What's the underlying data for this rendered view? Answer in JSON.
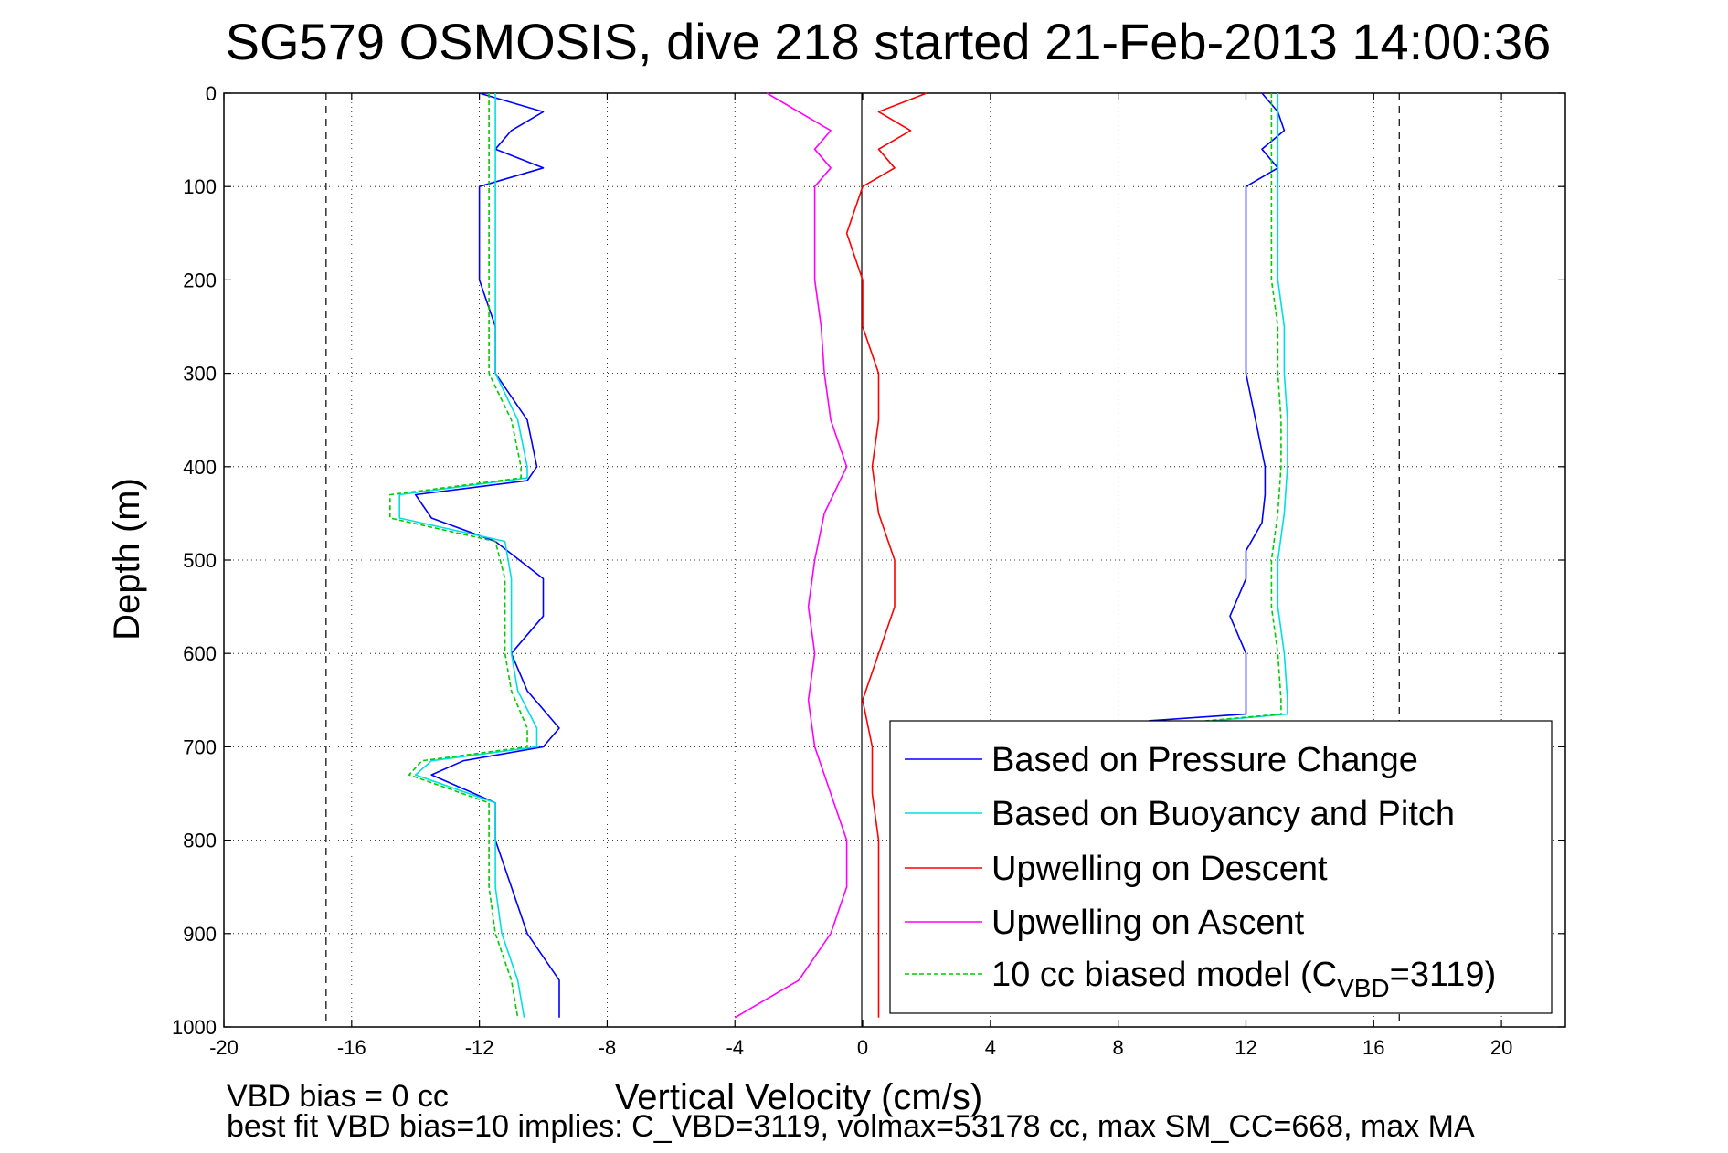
{
  "chart_data": {
    "type": "line",
    "title": "SG579 OSMOSIS, dive 218 started 21-Feb-2013 14:00:36",
    "xlabel": "Vertical Velocity (cm/s)",
    "ylabel": "Depth (m)",
    "xlim": [
      -20,
      22
    ],
    "ylim": [
      1000,
      0
    ],
    "y_reversed": true,
    "grid": true,
    "x_ticks": [
      -20,
      -16,
      -12,
      -8,
      -4,
      0,
      4,
      8,
      12,
      16,
      20
    ],
    "y_ticks": [
      0,
      100,
      200,
      300,
      400,
      500,
      600,
      700,
      800,
      900,
      1000
    ],
    "reference_lines": [
      -16.8,
      16.8
    ],
    "legend_position": "bottom-right",
    "series": [
      {
        "name": "Based on Pressure Change",
        "color": "#0000ff",
        "style": "solid",
        "segments": [
          {
            "depth": [
              0,
              20,
              40,
              60,
              80,
              100,
              150,
              200,
              250,
              300,
              350,
              400,
              415,
              430,
              455,
              480,
              520,
              560,
              600,
              640,
              680,
              700,
              715,
              730,
              760,
              800,
              850,
              900,
              950,
              990
            ],
            "value": [
              -12,
              -10,
              -11,
              -11.5,
              -10,
              -12,
              -12,
              -12,
              -11.5,
              -11.5,
              -10.5,
              -10.2,
              -10.5,
              -14,
              -13.5,
              -11.5,
              -10,
              -10,
              -11,
              -10.5,
              -9.5,
              -10,
              -12.5,
              -13.5,
              -11.5,
              -11.5,
              -11,
              -10.5,
              -9.5,
              -9.5
            ]
          },
          {
            "depth": [
              0,
              20,
              40,
              60,
              80,
              100,
              150,
              200,
              250,
              300,
              350,
              400,
              430,
              460,
              490,
              520,
              560,
              600,
              640,
              665,
              672,
              680
            ],
            "value": [
              12.5,
              13,
              13.2,
              12.5,
              13,
              12,
              12,
              12,
              12,
              12,
              12.3,
              12.6,
              12.6,
              12.5,
              12,
              12,
              11.5,
              12,
              12,
              12,
              9,
              8
            ]
          }
        ]
      },
      {
        "name": "Based on Buoyancy and Pitch",
        "color": "#00e0e0",
        "style": "solid",
        "segments": [
          {
            "depth": [
              0,
              50,
              100,
              150,
              200,
              250,
              300,
              350,
              400,
              412,
              430,
              455,
              480,
              520,
              560,
              600,
              640,
              680,
              700,
              715,
              730,
              760,
              800,
              850,
              900,
              950,
              990
            ],
            "value": [
              -11.5,
              -11.5,
              -11.5,
              -11.5,
              -11.5,
              -11.5,
              -11.5,
              -10.8,
              -10.5,
              -10.5,
              -14.5,
              -14.5,
              -11.2,
              -11,
              -11,
              -11,
              -10.8,
              -10.2,
              -10.2,
              -13.5,
              -14,
              -11.5,
              -11.5,
              -11.5,
              -11.3,
              -10.8,
              -10.6
            ]
          },
          {
            "depth": [
              0,
              50,
              100,
              150,
              200,
              250,
              300,
              350,
              400,
              450,
              500,
              550,
              600,
              650,
              665,
              675,
              680
            ],
            "value": [
              13,
              13,
              13,
              13,
              13,
              13.2,
              13.2,
              13.3,
              13.3,
              13.2,
              13,
              13,
              13.2,
              13.3,
              13.3,
              10,
              9.5
            ]
          }
        ]
      },
      {
        "name": "Upwelling on Descent",
        "color": "#ff0000",
        "style": "solid",
        "segments": [
          {
            "depth": [
              0,
              20,
              40,
              60,
              80,
              100,
              150,
              200,
              250,
              300,
              350,
              400,
              450,
              500,
              550,
              600,
              650,
              700,
              750,
              800,
              850,
              900,
              950,
              990
            ],
            "value": [
              2,
              0.5,
              1.5,
              0.5,
              1,
              0,
              -0.5,
              0,
              0,
              0.5,
              0.5,
              0.3,
              0.5,
              1,
              1,
              0.5,
              0,
              0.3,
              0.3,
              0.5,
              0.5,
              0.5,
              0.5,
              0.5
            ]
          }
        ]
      },
      {
        "name": "Upwelling on Ascent",
        "color": "#ff00ff",
        "style": "solid",
        "segments": [
          {
            "depth": [
              0,
              20,
              40,
              60,
              80,
              100,
              150,
              200,
              250,
              300,
              350,
              400,
              450,
              500,
              550,
              600,
              650,
              700,
              750,
              800,
              850,
              900,
              950,
              990
            ],
            "value": [
              -3,
              -2,
              -1,
              -1.5,
              -1,
              -1.5,
              -1.5,
              -1.5,
              -1.3,
              -1.2,
              -1,
              -0.5,
              -1.2,
              -1.5,
              -1.7,
              -1.5,
              -1.7,
              -1.5,
              -1,
              -0.5,
              -0.5,
              -1,
              -2,
              -4
            ]
          }
        ]
      },
      {
        "name": "10 cc biased model (C",
        "name_subscript": "VBD",
        "name_suffix": "=3119)",
        "color": "#00cc00",
        "style": "dashed",
        "segments": [
          {
            "depth": [
              0,
              50,
              100,
              150,
              200,
              250,
              300,
              350,
              400,
              412,
              430,
              455,
              480,
              520,
              560,
              600,
              640,
              680,
              700,
              715,
              730,
              760,
              800,
              850,
              900,
              950,
              990
            ],
            "value": [
              -11.7,
              -11.7,
              -11.7,
              -11.7,
              -11.7,
              -11.7,
              -11.7,
              -11,
              -10.7,
              -10.7,
              -14.8,
              -14.8,
              -11.5,
              -11.2,
              -11.2,
              -11.2,
              -11,
              -10.5,
              -10.5,
              -13.8,
              -14.2,
              -11.7,
              -11.7,
              -11.7,
              -11.5,
              -11,
              -10.8
            ]
          },
          {
            "depth": [
              0,
              50,
              100,
              150,
              200,
              250,
              300,
              350,
              400,
              450,
              500,
              550,
              600,
              650,
              665,
              675,
              680
            ],
            "value": [
              12.8,
              12.8,
              12.8,
              12.8,
              12.8,
              13,
              13,
              13.1,
              13.1,
              13,
              12.8,
              12.8,
              13,
              13.1,
              13.1,
              9.8,
              9.3
            ]
          }
        ]
      }
    ]
  },
  "footer": {
    "line1": "VBD bias = 0 cc",
    "line2": "best fit VBD bias=10 implies: C_VBD=3119, volmax=53178 cc, max SM_CC=668, max MA"
  }
}
